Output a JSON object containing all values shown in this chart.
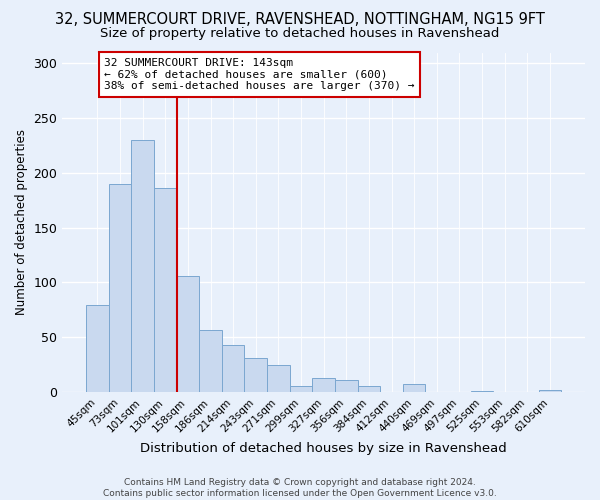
{
  "title": "32, SUMMERCOURT DRIVE, RAVENSHEAD, NOTTINGHAM, NG15 9FT",
  "subtitle": "Size of property relative to detached houses in Ravenshead",
  "xlabel": "Distribution of detached houses by size in Ravenshead",
  "ylabel": "Number of detached properties",
  "footer_line1": "Contains HM Land Registry data © Crown copyright and database right 2024.",
  "footer_line2": "Contains public sector information licensed under the Open Government Licence v3.0.",
  "bar_labels": [
    "45sqm",
    "73sqm",
    "101sqm",
    "130sqm",
    "158sqm",
    "186sqm",
    "214sqm",
    "243sqm",
    "271sqm",
    "299sqm",
    "327sqm",
    "356sqm",
    "384sqm",
    "412sqm",
    "440sqm",
    "469sqm",
    "497sqm",
    "525sqm",
    "553sqm",
    "582sqm",
    "610sqm"
  ],
  "bar_values": [
    79,
    190,
    230,
    186,
    106,
    57,
    43,
    31,
    25,
    5,
    13,
    11,
    5,
    0,
    7,
    0,
    0,
    1,
    0,
    0,
    2
  ],
  "bar_color": "#c9d9ef",
  "bar_edge_color": "#7ba7d0",
  "vline_color": "#cc0000",
  "vline_x": 3.5,
  "annotation_title": "32 SUMMERCOURT DRIVE: 143sqm",
  "annotation_line1": "← 62% of detached houses are smaller (600)",
  "annotation_line2": "38% of semi-detached houses are larger (370) →",
  "annotation_box_color": "#ffffff",
  "annotation_box_edge_color": "#cc0000",
  "ylim": [
    0,
    310
  ],
  "yticks": [
    0,
    50,
    100,
    150,
    200,
    250,
    300
  ],
  "background_color": "#e8f0fb",
  "title_fontsize": 10.5,
  "subtitle_fontsize": 9.5,
  "grid_color": "#ffffff",
  "footer_fontsize": 6.5
}
